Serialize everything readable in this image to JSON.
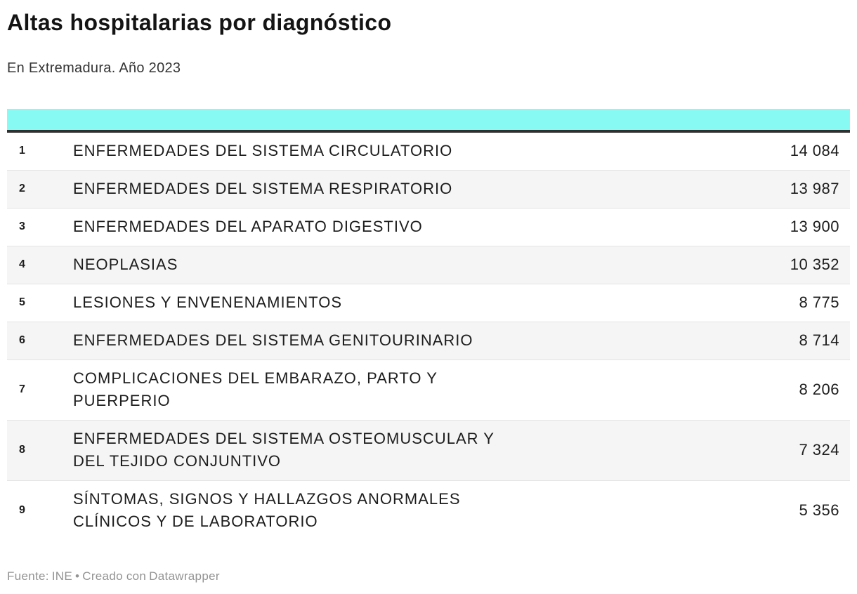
{
  "header": {
    "title": "Altas hospitalarias por diagnóstico",
    "subtitle": "En Extremadura. Año 2023"
  },
  "table": {
    "header_bar_color": "#87fbf3",
    "rows": [
      {
        "rank": "1",
        "diagnosis": "ENFERMEDADES DEL SISTEMA CIRCULATORIO",
        "value": "14 084"
      },
      {
        "rank": "2",
        "diagnosis": "ENFERMEDADES DEL SISTEMA RESPIRATORIO",
        "value": "13 987"
      },
      {
        "rank": "3",
        "diagnosis": "ENFERMEDADES DEL APARATO DIGESTIVO",
        "value": "13 900"
      },
      {
        "rank": "4",
        "diagnosis": "NEOPLASIAS",
        "value": "10 352"
      },
      {
        "rank": "5",
        "diagnosis": "LESIONES Y ENVENENAMIENTOS",
        "value": "8 775"
      },
      {
        "rank": "6",
        "diagnosis": "ENFERMEDADES DEL SISTEMA GENITOURINARIO",
        "value": "8 714"
      },
      {
        "rank": "7",
        "diagnosis": "COMPLICACIONES DEL EMBARAZO, PARTO Y PUERPERIO",
        "value": "8 206"
      },
      {
        "rank": "8",
        "diagnosis": "ENFERMEDADES DEL SISTEMA OSTEOMUSCULAR Y DEL TEJIDO CONJUNTIVO",
        "value": "7 324"
      },
      {
        "rank": "9",
        "diagnosis": "SÍNTOMAS, SIGNOS Y HALLAZGOS ANORMALES CLÍNICOS Y DE LABORATORIO",
        "value": "5 356"
      }
    ]
  },
  "footer": {
    "source_label": "Fuente:",
    "source": "INE",
    "separator": "•",
    "credit": "Creado con",
    "credit_link": "Datawrapper"
  },
  "chart_data": {
    "type": "table",
    "title": "Altas hospitalarias por diagnóstico",
    "subtitle": "En Extremadura. Año 2023",
    "categories": [
      "ENFERMEDADES DEL SISTEMA CIRCULATORIO",
      "ENFERMEDADES DEL SISTEMA RESPIRATORIO",
      "ENFERMEDADES DEL APARATO DIGESTIVO",
      "NEOPLASIAS",
      "LESIONES Y ENVENENAMIENTOS",
      "ENFERMEDADES DEL SISTEMA GENITOURINARIO",
      "COMPLICACIONES DEL EMBARAZO, PARTO Y PUERPERIO",
      "ENFERMEDADES DEL SISTEMA OSTEOMUSCULAR Y DEL TEJIDO CONJUNTIVO",
      "SÍNTOMAS, SIGNOS Y HALLAZGOS ANORMALES CLÍNICOS Y DE LABORATORIO"
    ],
    "values": [
      14084,
      13987,
      13900,
      10352,
      8775,
      8714,
      8206,
      7324,
      5356
    ],
    "ranks": [
      1,
      2,
      3,
      4,
      5,
      6,
      7,
      8,
      9
    ],
    "source": "Fuente: INE",
    "credit": "Creado con Datawrapper",
    "accent_color": "#87fbf3",
    "row_stripe_color": "#f5f5f5"
  }
}
